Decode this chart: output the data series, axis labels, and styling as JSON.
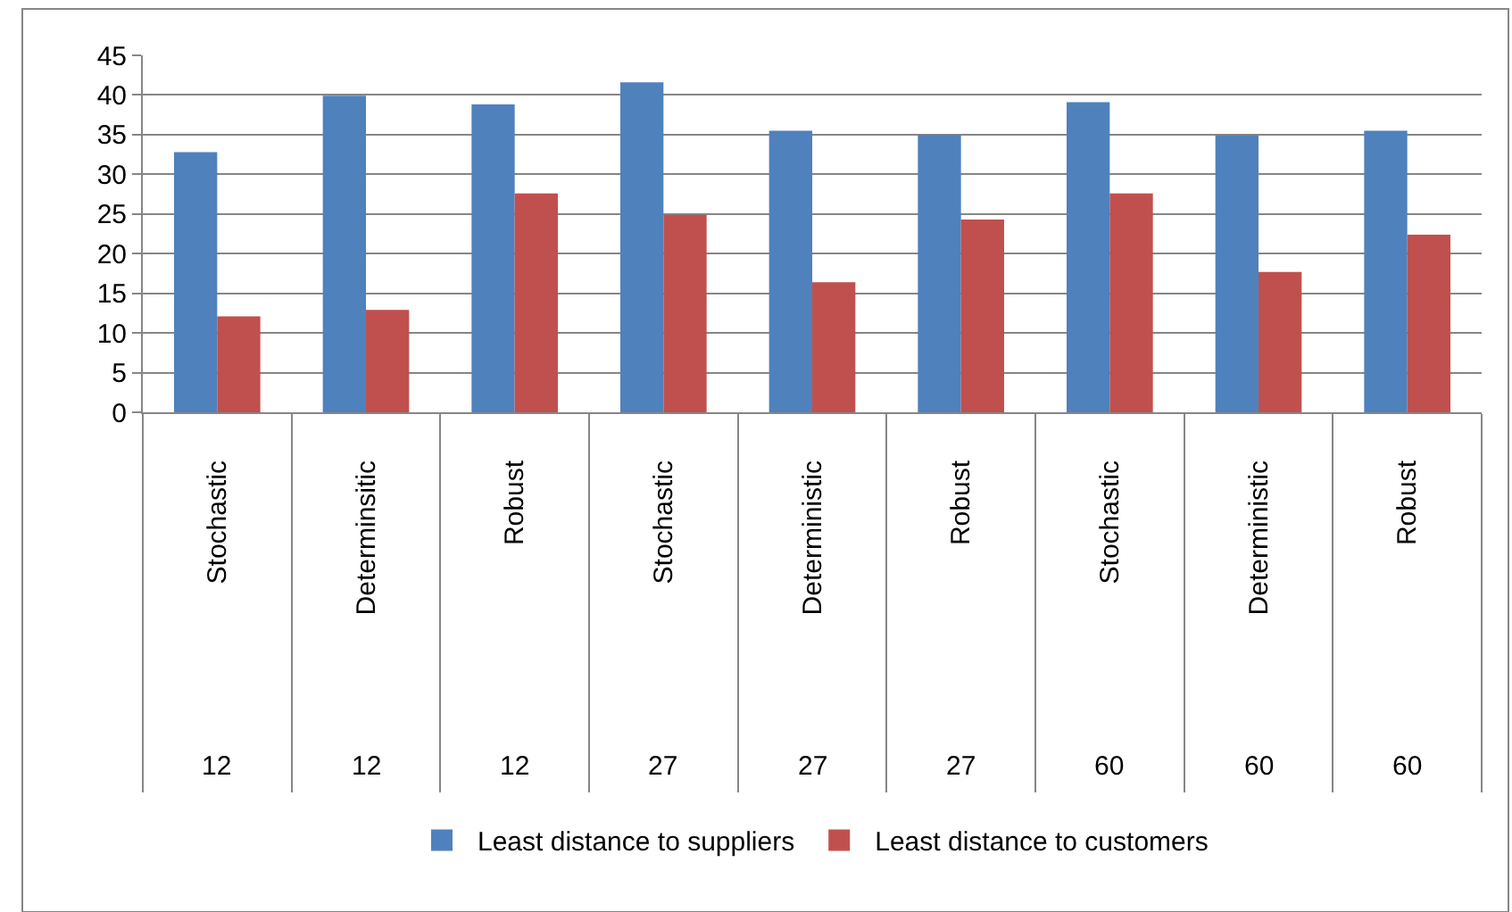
{
  "chart_data": {
    "type": "bar",
    "categories": [
      "Stochastic",
      "Determinsitic",
      "Robust",
      "Stochastic",
      "Deterministic",
      "Robust",
      "Stochastic",
      "Deterministic",
      "Robust"
    ],
    "series": [
      {
        "name": "Least distance to suppliers",
        "color": "#4f81bd",
        "values": [
          32.8,
          39.9,
          38.8,
          41.6,
          35.5,
          35.0,
          39.1,
          34.9,
          35.5
        ]
      },
      {
        "name": "Least distance to customers",
        "color": "#c0504d",
        "values": [
          12.1,
          12.9,
          27.6,
          24.9,
          16.4,
          24.3,
          27.6,
          17.7,
          22.4
        ]
      }
    ],
    "annotations": [
      "12",
      "12",
      "12",
      "27",
      "27",
      "27",
      "60",
      "60",
      "60"
    ],
    "ylim": [
      0,
      45
    ],
    "yticks": [
      0,
      5,
      10,
      15,
      20,
      25,
      30,
      35,
      40,
      45
    ],
    "grid": "y",
    "legend": "bottom"
  }
}
